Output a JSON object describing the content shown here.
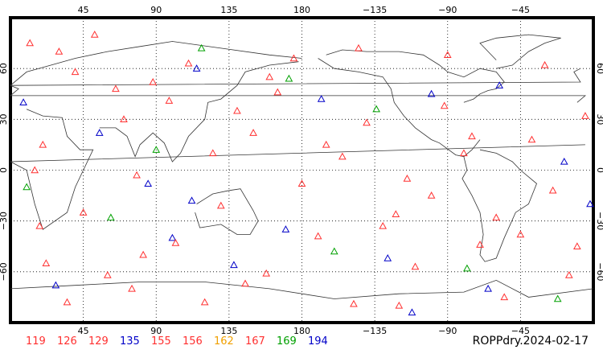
{
  "map": {
    "title": "ROPPdry.2024-02-17",
    "projection": "cylindrical equidistant",
    "lon_range": [
      0,
      360
    ],
    "lat_range": [
      -90,
      90
    ],
    "grid": true,
    "lon_tick_labels": [
      "45",
      "90",
      "135",
      "180",
      "−135",
      "−90",
      "−45"
    ],
    "lat_tick_labels": [
      "60",
      "30",
      "0",
      "−30",
      "−60"
    ],
    "marker_symbol": "open-triangle"
  },
  "legend": [
    {
      "label": "119",
      "color": "#ff3030"
    },
    {
      "label": "126",
      "color": "#ff3030"
    },
    {
      "label": "129",
      "color": "#ff3030"
    },
    {
      "label": "135",
      "color": "#0000c8"
    },
    {
      "label": "155",
      "color": "#ff3030"
    },
    {
      "label": "156",
      "color": "#ff3030"
    },
    {
      "label": "162",
      "color": "#f0a000"
    },
    {
      "label": "167",
      "color": "#ff3030"
    },
    {
      "label": "169",
      "color": "#00a000"
    },
    {
      "label": "194",
      "color": "#0000c8"
    }
  ],
  "chart_data": {
    "type": "scatter",
    "title": "ROPPdry.2024-02-17",
    "x_label": "",
    "y_label": "",
    "xlim": [
      0,
      360
    ],
    "ylim": [
      -90,
      90
    ],
    "series": [
      {
        "name": "119",
        "color": "#ff3030",
        "points": [
          [
            12,
            75
          ],
          [
            40,
            58
          ],
          [
            98,
            41
          ],
          [
            150,
            22
          ],
          [
            205,
            8
          ],
          [
            260,
            -15
          ],
          [
            315,
            -38
          ],
          [
            22,
            -55
          ],
          [
            75,
            -70
          ],
          [
            330,
            62
          ]
        ]
      },
      {
        "name": "126",
        "color": "#ff3030",
        "points": [
          [
            30,
            70
          ],
          [
            88,
            52
          ],
          [
            140,
            35
          ],
          [
            195,
            15
          ],
          [
            245,
            -5
          ],
          [
            300,
            -28
          ],
          [
            350,
            -45
          ],
          [
            60,
            -62
          ],
          [
            120,
            -78
          ],
          [
            270,
            68
          ]
        ]
      },
      {
        "name": "129",
        "color": "#ff3030",
        "points": [
          [
            52,
            80
          ],
          [
            110,
            63
          ],
          [
            165,
            46
          ],
          [
            220,
            28
          ],
          [
            280,
            10
          ],
          [
            335,
            -12
          ],
          [
            18,
            -33
          ],
          [
            82,
            -50
          ],
          [
            145,
            -67
          ],
          [
            240,
            -80
          ]
        ]
      },
      {
        "name": "135",
        "color": "#0000c8",
        "points": [
          [
            8,
            40
          ],
          [
            55,
            22
          ],
          [
            112,
            -18
          ],
          [
            170,
            -35
          ],
          [
            233,
            -52
          ],
          [
            295,
            -70
          ],
          [
            342,
            5
          ],
          [
            100,
            -40
          ],
          [
            260,
            45
          ]
        ]
      },
      {
        "name": "155",
        "color": "#ff3030",
        "points": [
          [
            70,
            30
          ],
          [
            125,
            10
          ],
          [
            180,
            -8
          ],
          [
            238,
            -26
          ],
          [
            290,
            -44
          ],
          [
            345,
            -62
          ],
          [
            35,
            -78
          ],
          [
            160,
            55
          ],
          [
            215,
            72
          ]
        ]
      },
      {
        "name": "156",
        "color": "#ff3030",
        "points": [
          [
            20,
            15
          ],
          [
            78,
            -3
          ],
          [
            130,
            -21
          ],
          [
            190,
            -39
          ],
          [
            250,
            -57
          ],
          [
            305,
            -75
          ],
          [
            355,
            32
          ],
          [
            65,
            48
          ],
          [
            285,
            20
          ]
        ]
      },
      {
        "name": "162",
        "color": "#f0a000",
        "points": []
      },
      {
        "name": "167",
        "color": "#ff3030",
        "points": [
          [
            45,
            -25
          ],
          [
            102,
            -43
          ],
          [
            158,
            -61
          ],
          [
            212,
            -79
          ],
          [
            268,
            38
          ],
          [
            322,
            18
          ],
          [
            15,
            0
          ],
          [
            175,
            66
          ],
          [
            230,
            -33
          ]
        ]
      },
      {
        "name": "169",
        "color": "#00a000",
        "points": [
          [
            10,
            -10
          ],
          [
            62,
            -28
          ],
          [
            118,
            72
          ],
          [
            172,
            54
          ],
          [
            226,
            36
          ],
          [
            282,
            -58
          ],
          [
            338,
            -76
          ],
          [
            90,
            12
          ],
          [
            200,
            -48
          ]
        ]
      },
      {
        "name": "194",
        "color": "#0000c8",
        "points": [
          [
            28,
            -68
          ],
          [
            85,
            -8
          ],
          [
            138,
            -56
          ],
          [
            192,
            42
          ],
          [
            248,
            -84
          ],
          [
            302,
            50
          ],
          [
            358,
            -20
          ],
          [
            115,
            60
          ]
        ]
      }
    ]
  }
}
